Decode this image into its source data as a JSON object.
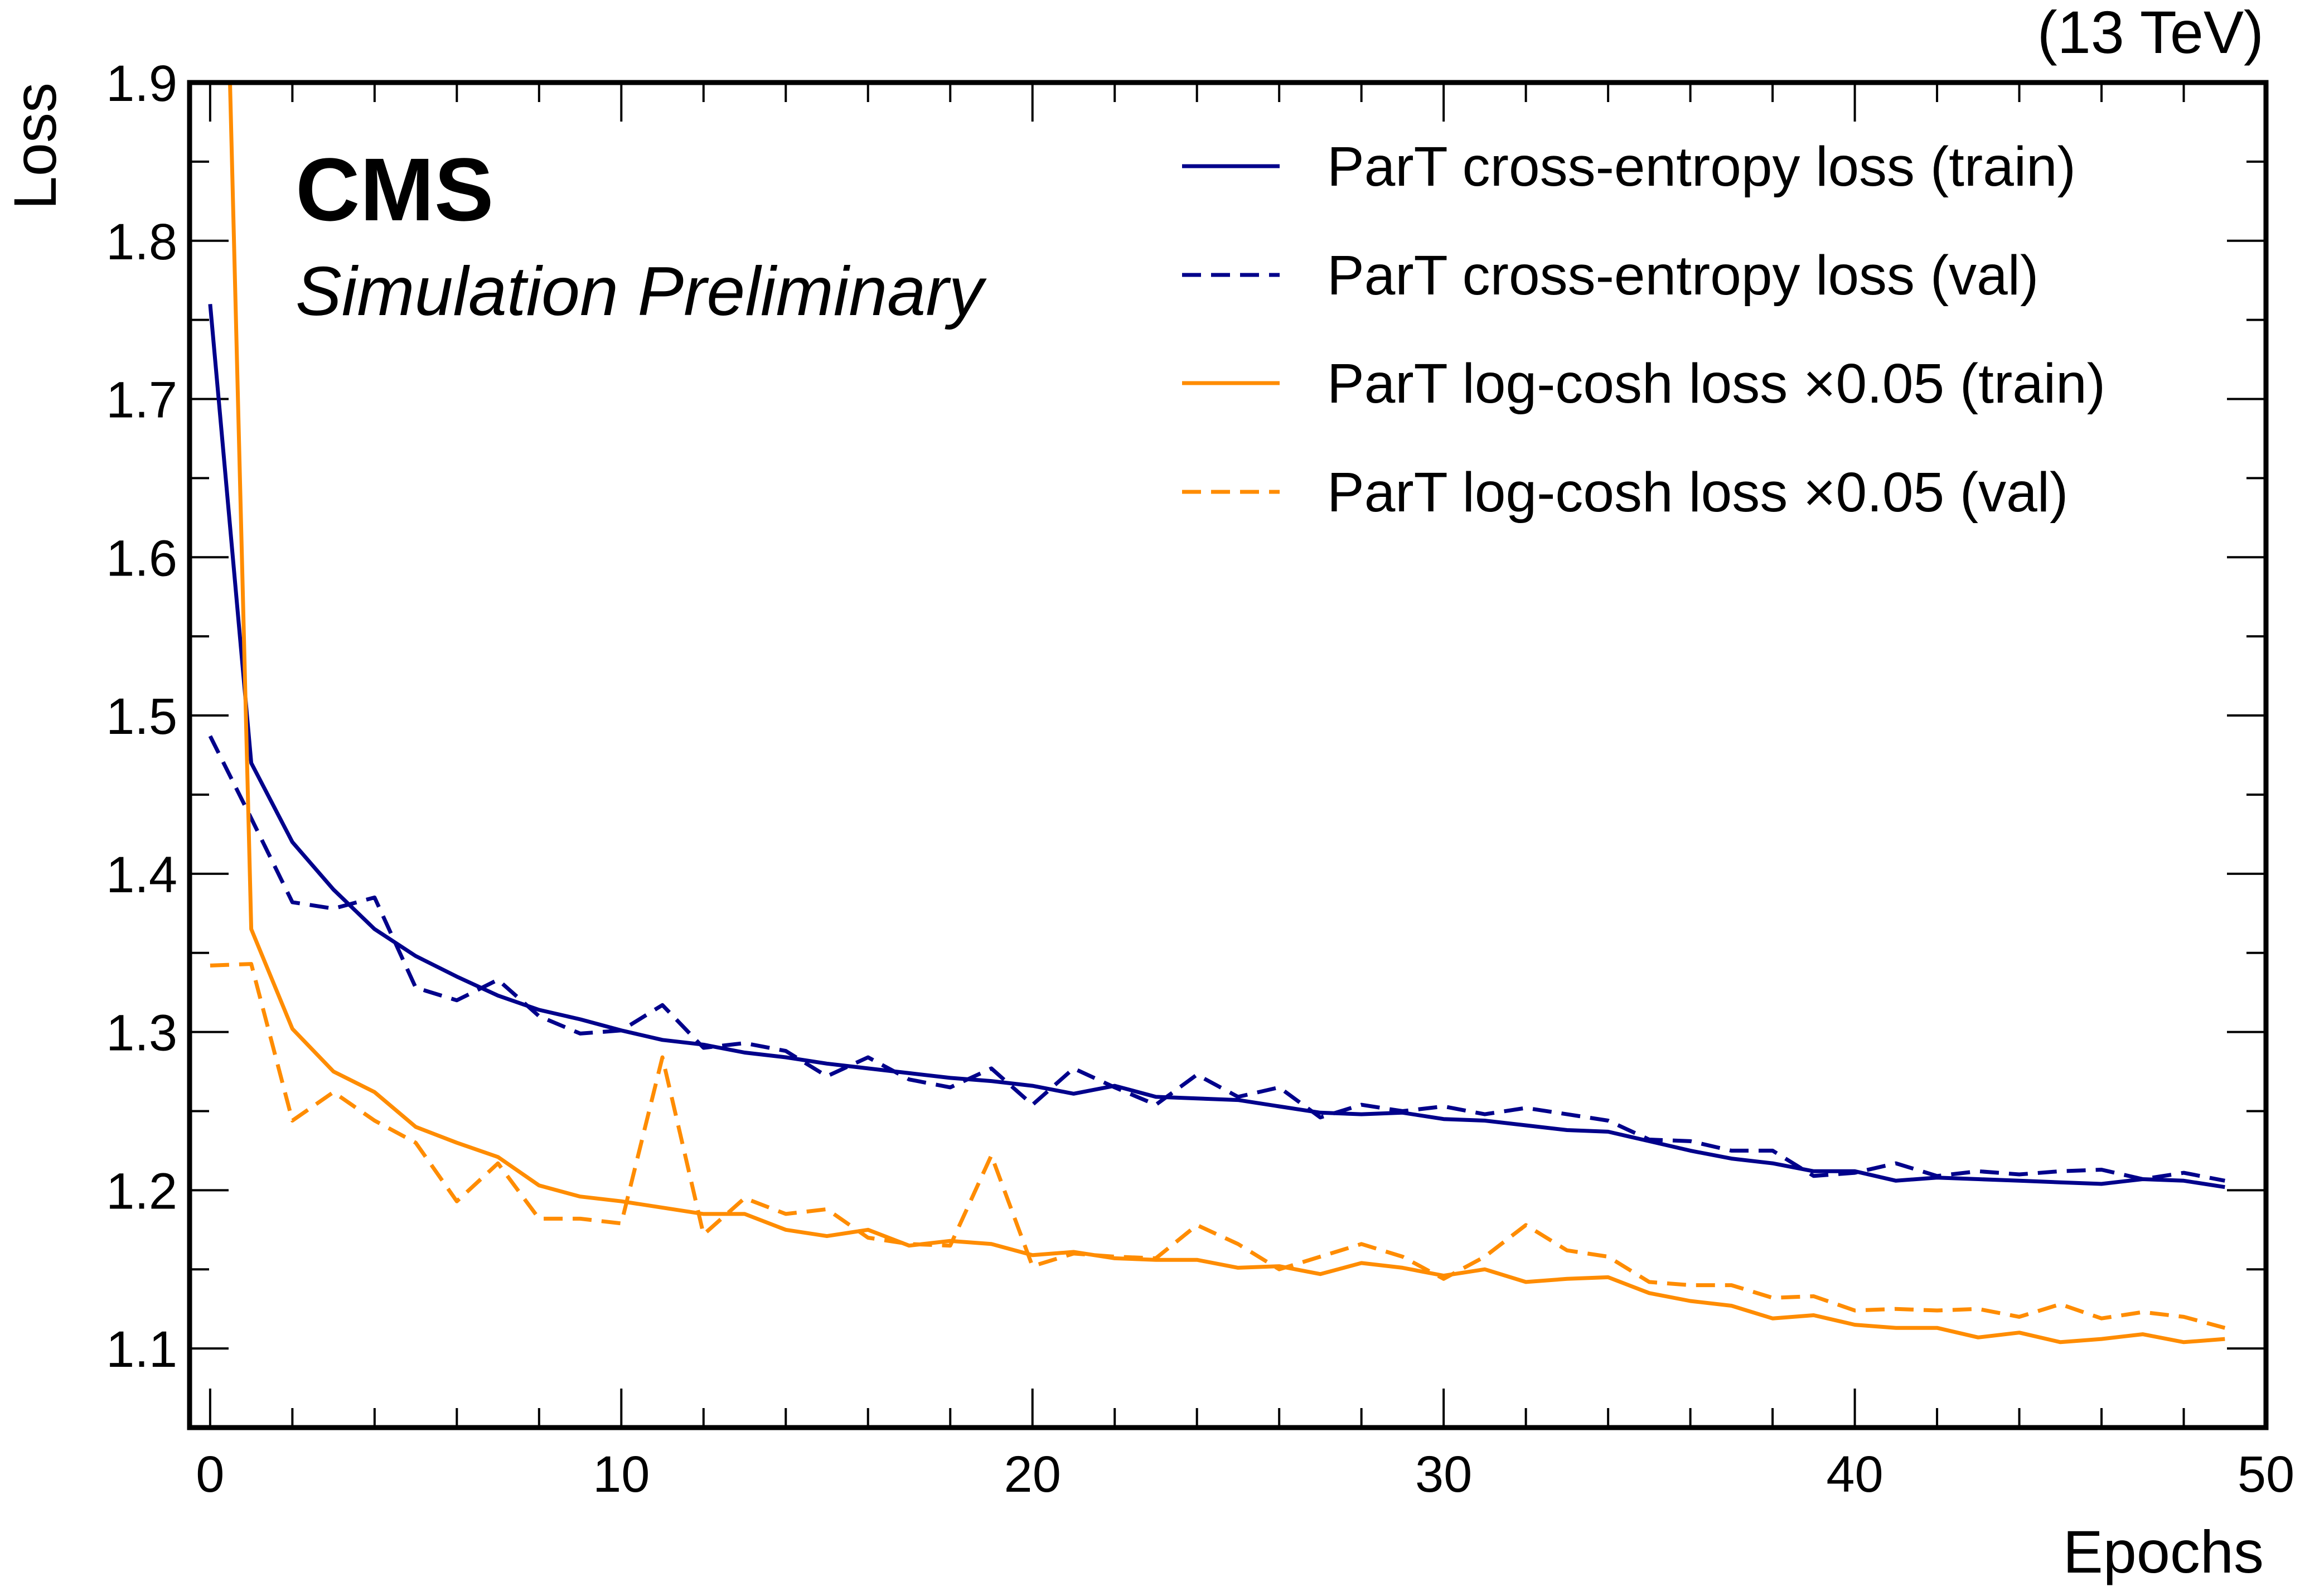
{
  "chart_data": {
    "type": "line",
    "title": "",
    "experiment_label": "CMS",
    "experiment_sublabel": "Simulation Preliminary",
    "energy_label": "(13 TeV)",
    "xlabel": "Epochs",
    "ylabel": "Loss",
    "xlim": [
      -0.5,
      50
    ],
    "ylim": [
      1.05,
      1.9
    ],
    "xticks": [
      0,
      10,
      20,
      30,
      40,
      50
    ],
    "yticks": [
      1.1,
      1.2,
      1.3,
      1.4,
      1.5,
      1.6,
      1.7,
      1.8,
      1.9
    ],
    "ytick_labels": [
      "1.1",
      "1.2",
      "1.3",
      "1.4",
      "1.5",
      "1.6",
      "1.7",
      "1.8",
      "1.9"
    ],
    "grid": false,
    "legend_position": "top-right",
    "x": [
      0,
      1,
      2,
      3,
      4,
      5,
      6,
      7,
      8,
      9,
      10,
      11,
      12,
      13,
      14,
      15,
      16,
      17,
      18,
      19,
      20,
      21,
      22,
      23,
      24,
      25,
      26,
      27,
      28,
      29,
      30,
      31,
      32,
      33,
      34,
      35,
      36,
      37,
      38,
      39,
      40,
      41,
      42,
      43,
      44,
      45,
      46,
      47,
      48,
      49
    ],
    "series": [
      {
        "name": "ParT cross-entropy loss (train)",
        "color": "#00008b",
        "dash": "solid",
        "values": [
          1.76,
          1.47,
          1.42,
          1.39,
          1.365,
          1.348,
          1.335,
          1.323,
          1.314,
          1.308,
          1.301,
          1.295,
          1.292,
          1.287,
          1.284,
          1.28,
          1.277,
          1.274,
          1.271,
          1.269,
          1.266,
          1.261,
          1.266,
          1.259,
          1.258,
          1.257,
          1.253,
          1.249,
          1.248,
          1.249,
          1.245,
          1.244,
          1.241,
          1.238,
          1.237,
          1.231,
          1.225,
          1.22,
          1.217,
          1.212,
          1.212,
          1.206,
          1.208,
          1.207,
          1.206,
          1.205,
          1.204,
          1.207,
          1.206,
          1.202
        ]
      },
      {
        "name": "ParT cross-entropy loss (val)",
        "color": "#00008b",
        "dash": "dashed",
        "values": [
          1.487,
          1.435,
          1.382,
          1.378,
          1.385,
          1.328,
          1.32,
          1.333,
          1.31,
          1.299,
          1.301,
          1.317,
          1.29,
          1.293,
          1.288,
          1.272,
          1.284,
          1.27,
          1.265,
          1.277,
          1.254,
          1.277,
          1.265,
          1.254,
          1.273,
          1.259,
          1.265,
          1.246,
          1.254,
          1.25,
          1.253,
          1.248,
          1.252,
          1.248,
          1.244,
          1.232,
          1.231,
          1.225,
          1.225,
          1.209,
          1.211,
          1.217,
          1.209,
          1.212,
          1.21,
          1.212,
          1.213,
          1.207,
          1.211,
          1.206
        ]
      },
      {
        "name": "ParT log-cosh loss ×0.05 (train)",
        "color": "#ff8c00",
        "dash": "solid",
        "values": [
          2.4,
          1.365,
          1.302,
          1.275,
          1.262,
          1.24,
          1.23,
          1.221,
          1.203,
          1.196,
          1.193,
          1.189,
          1.185,
          1.185,
          1.175,
          1.171,
          1.175,
          1.165,
          1.168,
          1.166,
          1.159,
          1.161,
          1.157,
          1.156,
          1.156,
          1.151,
          1.152,
          1.147,
          1.154,
          1.151,
          1.146,
          1.15,
          1.142,
          1.144,
          1.145,
          1.135,
          1.13,
          1.127,
          1.119,
          1.121,
          1.115,
          1.113,
          1.113,
          1.107,
          1.11,
          1.104,
          1.106,
          1.109,
          1.104,
          1.106
        ]
      },
      {
        "name": "ParT log-cosh loss ×0.05 (val)",
        "color": "#ff8c00",
        "dash": "dashed",
        "values": [
          1.342,
          1.343,
          1.244,
          1.262,
          1.244,
          1.23,
          1.193,
          1.217,
          1.182,
          1.182,
          1.179,
          1.284,
          1.172,
          1.195,
          1.185,
          1.188,
          1.17,
          1.166,
          1.165,
          1.222,
          1.152,
          1.16,
          1.158,
          1.157,
          1.178,
          1.166,
          1.15,
          1.158,
          1.166,
          1.158,
          1.144,
          1.158,
          1.178,
          1.162,
          1.158,
          1.142,
          1.14,
          1.14,
          1.132,
          1.133,
          1.124,
          1.125,
          1.124,
          1.125,
          1.12,
          1.128,
          1.119,
          1.123,
          1.12,
          1.113
        ]
      }
    ]
  }
}
